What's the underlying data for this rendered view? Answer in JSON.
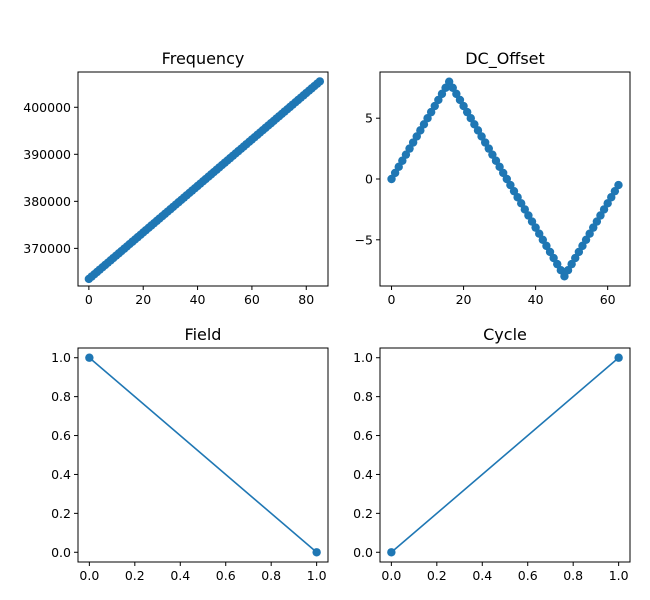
{
  "chart_data": [
    {
      "type": "scatter",
      "title": "Frequency",
      "x": {
        "start": 0,
        "end": 85,
        "step": 1
      },
      "y": {
        "start": 363500,
        "end": 405500
      },
      "xlim": [
        -4,
        88
      ],
      "ylim": [
        362000,
        407500
      ],
      "xticks": [
        0,
        20,
        40,
        60,
        80
      ],
      "yticks": [
        370000,
        380000,
        390000,
        400000
      ],
      "line": false,
      "marker": true,
      "color": "#1f77b4"
    },
    {
      "type": "scatter",
      "title": "DC_Offset",
      "x": {
        "start": 0,
        "end": 63,
        "step": 1
      },
      "y_segments": [
        {
          "x0": 0,
          "x1": 16,
          "y0": 0,
          "y1": 8
        },
        {
          "x0": 16,
          "x1": 48,
          "y0": 8,
          "y1": -8
        },
        {
          "x0": 48,
          "x1": 63,
          "y0": -8,
          "y1": -0.5
        }
      ],
      "xlim": [
        -3.2,
        66.2
      ],
      "ylim": [
        -8.8,
        8.8
      ],
      "xticks": [
        0,
        20,
        40,
        60
      ],
      "yticks": [
        -5,
        0,
        5
      ],
      "line": false,
      "marker": true,
      "color": "#1f77b4"
    },
    {
      "type": "line",
      "title": "Field",
      "points": [
        [
          0,
          1.0
        ],
        [
          1,
          0.0
        ]
      ],
      "xlim": [
        -0.05,
        1.05
      ],
      "ylim": [
        -0.05,
        1.05
      ],
      "xticks": [
        0.0,
        0.2,
        0.4,
        0.6,
        0.8,
        1.0
      ],
      "yticks": [
        0.0,
        0.2,
        0.4,
        0.6,
        0.8,
        1.0
      ],
      "tick_decimals": 1,
      "line": true,
      "marker": true,
      "color": "#1f77b4"
    },
    {
      "type": "line",
      "title": "Cycle",
      "points": [
        [
          0,
          0.0
        ],
        [
          1,
          1.0
        ]
      ],
      "xlim": [
        -0.05,
        1.05
      ],
      "ylim": [
        -0.05,
        1.05
      ],
      "xticks": [
        0.0,
        0.2,
        0.4,
        0.6,
        0.8,
        1.0
      ],
      "yticks": [
        0.0,
        0.2,
        0.4,
        0.6,
        0.8,
        1.0
      ],
      "tick_decimals": 1,
      "line": true,
      "marker": true,
      "color": "#1f77b4"
    }
  ]
}
